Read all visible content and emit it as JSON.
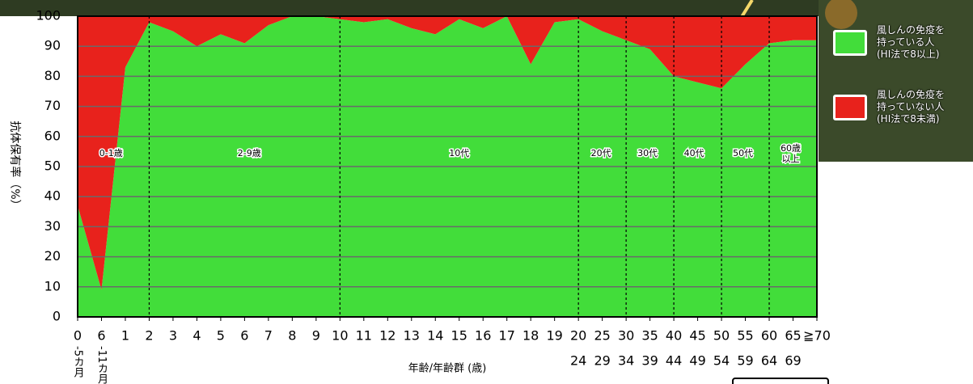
{
  "chart_data": {
    "type": "stacked-area",
    "y_label": "抗体保有率（%）",
    "x_label": "年齢/年齢群 (歳)",
    "categories": [
      "0",
      "6",
      "1",
      "2",
      "3",
      "4",
      "5",
      "6",
      "7",
      "8",
      "9",
      "10",
      "11",
      "12",
      "13",
      "14",
      "15",
      "16",
      "17",
      "18",
      "19",
      "20",
      "25",
      "30",
      "35",
      "40",
      "45",
      "50",
      "55",
      "60",
      "65",
      "≧70"
    ],
    "category_sublabels": [
      "-5カ月",
      "-11カ月",
      null,
      null,
      null,
      null,
      null,
      null,
      null,
      null,
      null,
      null,
      null,
      null,
      null,
      null,
      null,
      null,
      null,
      null,
      null,
      "24",
      "29",
      "34",
      "39",
      "44",
      "49",
      "54",
      "59",
      "64",
      "69",
      null
    ],
    "series": [
      {
        "name": "風しんの免疫を\n持っている人\n(HI法で8以上)",
        "color": "#42dd3a",
        "values": [
          37,
          9,
          83,
          98,
          95,
          90,
          94,
          91,
          97,
          100,
          100,
          99,
          98,
          99,
          96,
          94,
          99,
          96,
          100,
          84,
          98,
          99,
          95,
          92,
          89,
          80,
          78,
          76,
          84,
          91,
          92,
          92
        ]
      },
      {
        "name": "風しんの免疫を\n持っていない人\n(HI法で8未満)",
        "color": "#e8221c",
        "values": [
          63,
          91,
          17,
          2,
          5,
          10,
          6,
          9,
          3,
          0,
          0,
          1,
          2,
          1,
          4,
          6,
          1,
          4,
          0,
          16,
          2,
          1,
          5,
          8,
          11,
          20,
          22,
          24,
          16,
          9,
          8,
          8
        ]
      }
    ],
    "age_groups": [
      "0-1歳",
      "2-9歳",
      "10代",
      "20代",
      "30代",
      "40代",
      "50代",
      "60歳\n以上"
    ],
    "ylim": [
      0,
      100
    ],
    "yticks": [
      0,
      10,
      20,
      30,
      40,
      50,
      60,
      70,
      80,
      90,
      100
    ],
    "grid": true
  }
}
